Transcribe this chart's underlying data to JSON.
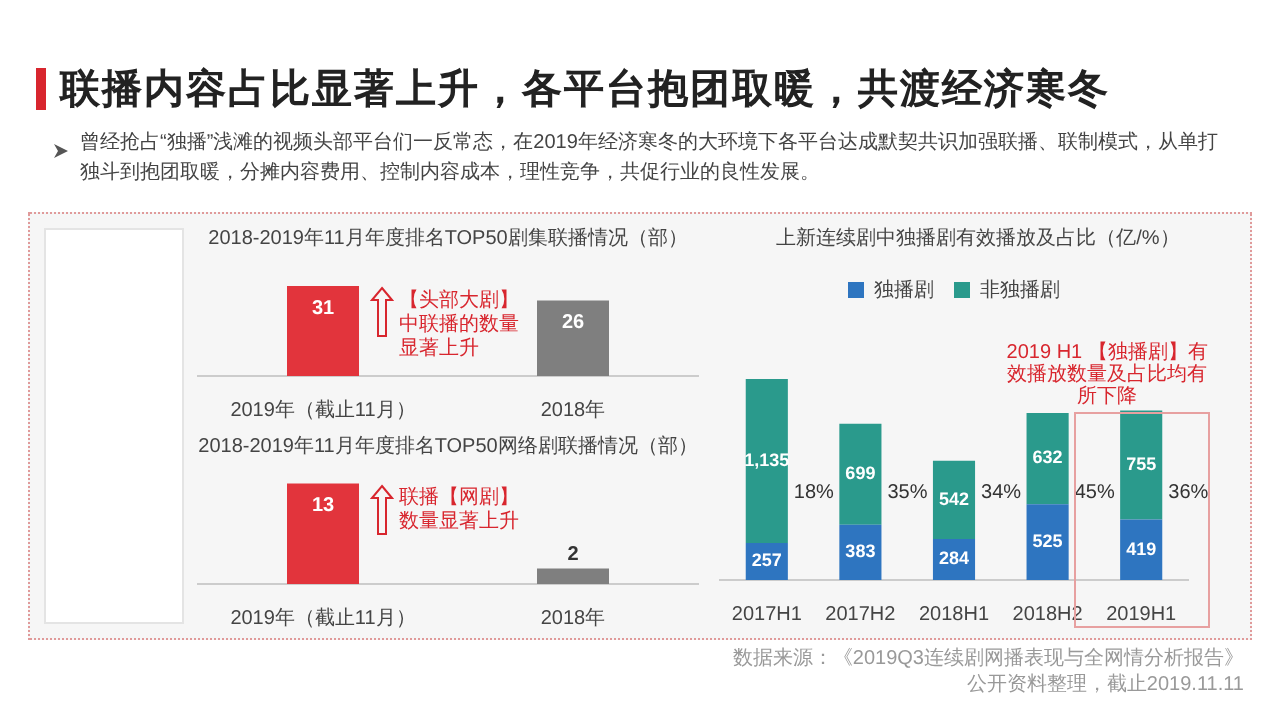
{
  "chart_data": [
    {
      "type": "other",
      "title": "联播内容占比显著上升，各平台抱团取暖，共渡经济寒冬",
      "subtitle": "曾经抢占“独播”浅滩的视频头部平台们一反常态，在2019年经济寒冬的大环境下各平台达成默契共识加强联播、联制模式，从单打独斗到抱团取暖，分摊内容费用、控制内容成本，理性竞争，共促行业的良性发展。",
      "annotations": [
        "数据来源：《2019Q3连续剧网播表现与全网情分析报告》",
        "公开资料整理，截止2019.11.11"
      ]
    },
    {
      "type": "bar",
      "title": "2018-2019年11月年度排名TOP50剧集联播情况（部）",
      "categories": [
        "2019年（截止11月）",
        "2018年"
      ],
      "values": [
        31,
        26
      ],
      "colors": [
        "#e2343c",
        "#7f7f7f"
      ],
      "data_labels": true,
      "annotations": [
        "【头部大剧】中联播的数量显著上升"
      ]
    },
    {
      "type": "bar",
      "title": "2018-2019年11月年度排名TOP50网络剧联播情况（部）",
      "categories": [
        "2019年（截止11月）",
        "2018年"
      ],
      "values": [
        13,
        2
      ],
      "colors": [
        "#e2343c",
        "#7f7f7f"
      ],
      "data_labels": true,
      "annotations": [
        "联播【网剧】数量显著上升"
      ]
    },
    {
      "type": "bar",
      "title": "上新连续剧中独播剧有效播放及占比（亿/%）",
      "stacked": true,
      "legend": "top",
      "categories": [
        "2017H1",
        "2017H2",
        "2018H1",
        "2018H2",
        "2019H1"
      ],
      "series": [
        {
          "name": "独播剧",
          "color": "#2e75c0",
          "values": [
            257,
            383,
            284,
            525,
            419
          ],
          "value_labels": [
            "257",
            "383",
            "284",
            "525",
            "419"
          ]
        },
        {
          "name": "非独播剧",
          "color": "#2a9a8c",
          "values": [
            1135,
            699,
            542,
            632,
            755
          ],
          "value_labels": [
            "1,135",
            "699",
            "542",
            "632",
            "755"
          ]
        }
      ],
      "annotations": [
        "18%",
        "35%",
        "34%",
        "45%",
        "36%",
        "2019 H1 【独播剧】有效播放数量及占比均有所下降"
      ]
    }
  ]
}
